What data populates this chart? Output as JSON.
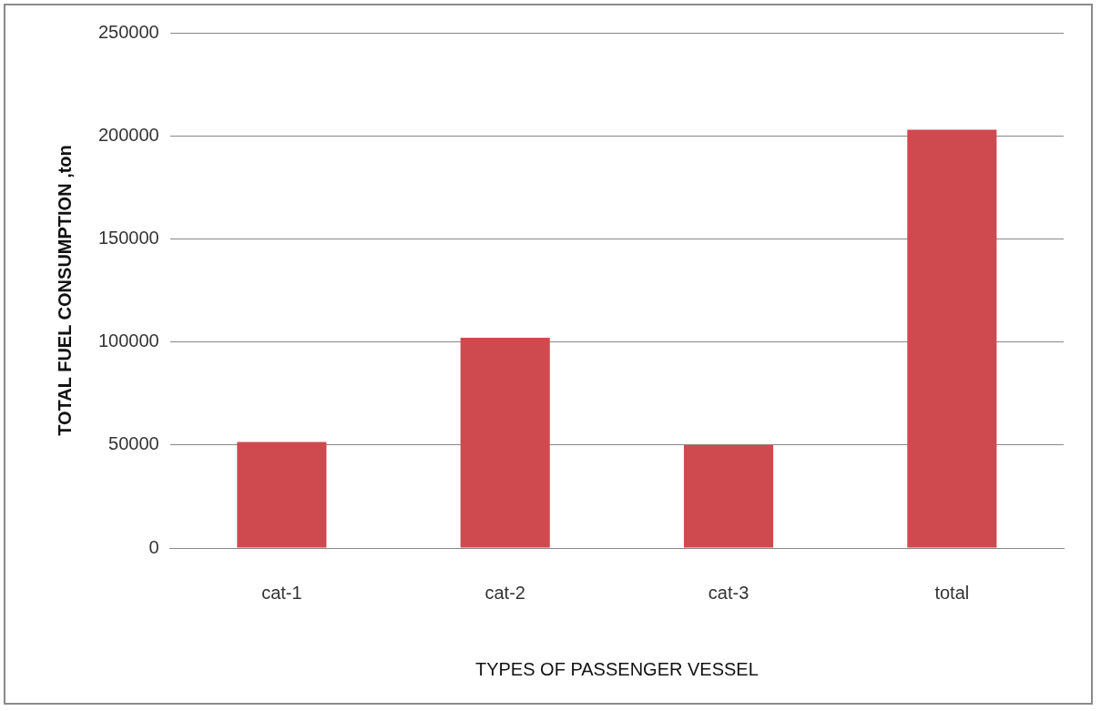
{
  "chart_data": {
    "type": "bar",
    "xlabel": "TYPES OF PASSENGER VESSEL",
    "ylabel": "TOTAL FUEL CONSUMPTION ,ton",
    "categories": [
      "cat-1",
      "cat-2",
      "cat-3",
      "total"
    ],
    "values": [
      51500,
      102000,
      50000,
      203000
    ],
    "color": "#cf4a4f",
    "ylim": [
      0,
      250000
    ],
    "yticks": [
      0,
      50000,
      100000,
      150000,
      200000,
      250000
    ],
    "grid": "y"
  }
}
